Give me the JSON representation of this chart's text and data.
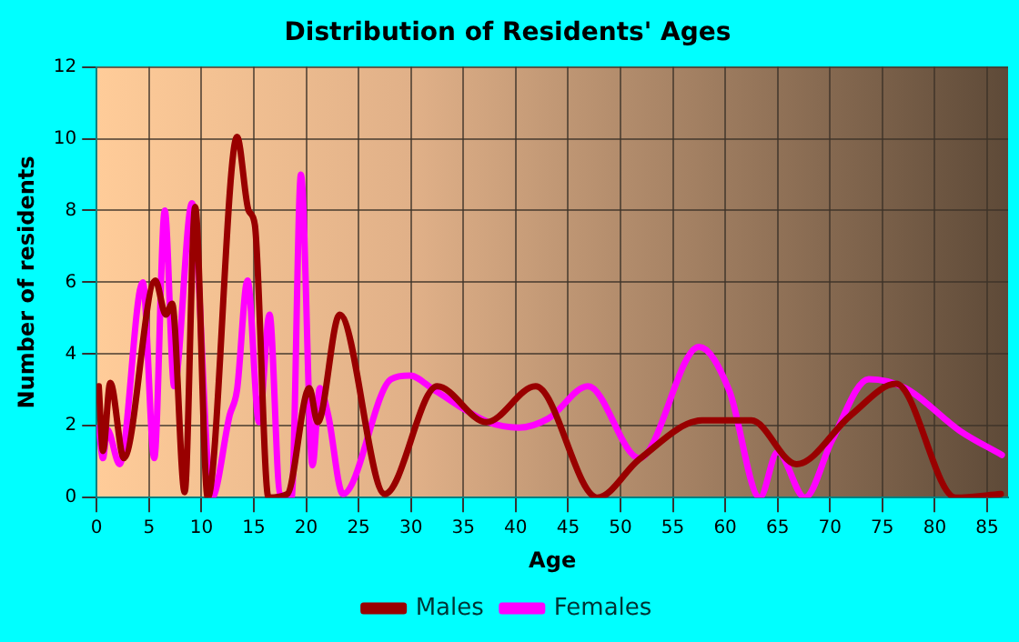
{
  "chart_data": {
    "type": "line",
    "title": "Distribution of Residents' Ages",
    "xlabel": "Age",
    "ylabel": "Number of residents",
    "xlim": [
      0,
      87
    ],
    "xticks": [
      0,
      5,
      10,
      15,
      20,
      25,
      30,
      35,
      40,
      45,
      50,
      55,
      60,
      65,
      70,
      75,
      80,
      85
    ],
    "ylim": [
      0,
      12
    ],
    "yticks": [
      0,
      2,
      4,
      6,
      8,
      10,
      12
    ],
    "grid": true,
    "legend": "bottom",
    "marker": "none",
    "line_style": "solid",
    "series": [
      {
        "name": "Males",
        "color": "#990000",
        "x": [
          0.2,
          0.6,
          1.3,
          2.6,
          5.6,
          6.6,
          7.2,
          8.4,
          9.4,
          10.6,
          13.4,
          14.5,
          15.1,
          16.4,
          18.2,
          20.3,
          21.1,
          23.2,
          27.5,
          32.5,
          37.2,
          41.9,
          47.8,
          51.8,
          57.8,
          62.5,
          66.8,
          72,
          76.3,
          82,
          86.3
        ],
        "values": [
          3.1,
          1.3,
          3.2,
          1.1,
          6.05,
          5.1,
          5.4,
          0.15,
          8.1,
          0,
          10.05,
          8,
          7.6,
          0,
          0.1,
          3.05,
          2.1,
          5.1,
          0.1,
          3.1,
          2.1,
          3.1,
          0,
          1.07,
          2.15,
          2.15,
          0.93,
          2.3,
          3.17,
          0,
          0.1
        ]
      },
      {
        "name": "Females",
        "color": "#ff00ff",
        "x": [
          0.2,
          0.6,
          1,
          2.2,
          4.4,
          5.5,
          6.5,
          7.4,
          9.1,
          11,
          12.7,
          13.4,
          14.4,
          15.5,
          16.5,
          17.5,
          18.6,
          19.5,
          20.6,
          21.3,
          22.1,
          23.5,
          28.1,
          29.9,
          32.2,
          37.4,
          40.3,
          43.1,
          46.9,
          51.8,
          57.5,
          60.4,
          63.3,
          65,
          67.6,
          70.2,
          73.7,
          77.2,
          82.4,
          86.4
        ],
        "values": [
          1.95,
          1.1,
          1.9,
          0.93,
          6,
          1.1,
          8,
          3.1,
          8.2,
          0,
          2.3,
          3,
          6.05,
          2.1,
          5.1,
          0.1,
          0,
          9,
          0.9,
          3.05,
          2.3,
          0.1,
          3.3,
          3.4,
          3,
          2.1,
          1.95,
          2.2,
          3.1,
          1.1,
          4.2,
          2.97,
          0,
          1.27,
          0,
          1.6,
          3.3,
          3.05,
          1.86,
          1.19
        ]
      }
    ]
  }
}
